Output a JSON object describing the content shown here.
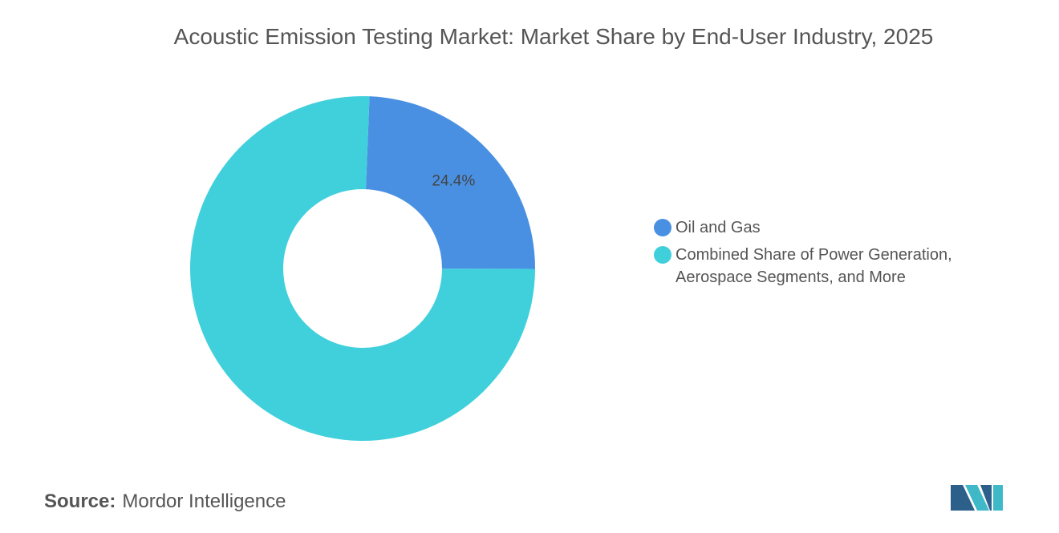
{
  "chart_data": {
    "type": "donut",
    "title": "Acoustic Emission Testing Market: Market Share by End-User Industry, 2025",
    "categories": [
      "Oil and Gas",
      "Combined Share of Power Generation, Aerospace Segments, and More"
    ],
    "values": [
      24.4,
      75.6
    ],
    "value_labels": [
      "24.4%",
      null
    ],
    "colors": [
      "#4a90e2",
      "#40d0dc"
    ],
    "legend": "right",
    "source_label": "Source:",
    "source": "Mordor Intelligence"
  }
}
